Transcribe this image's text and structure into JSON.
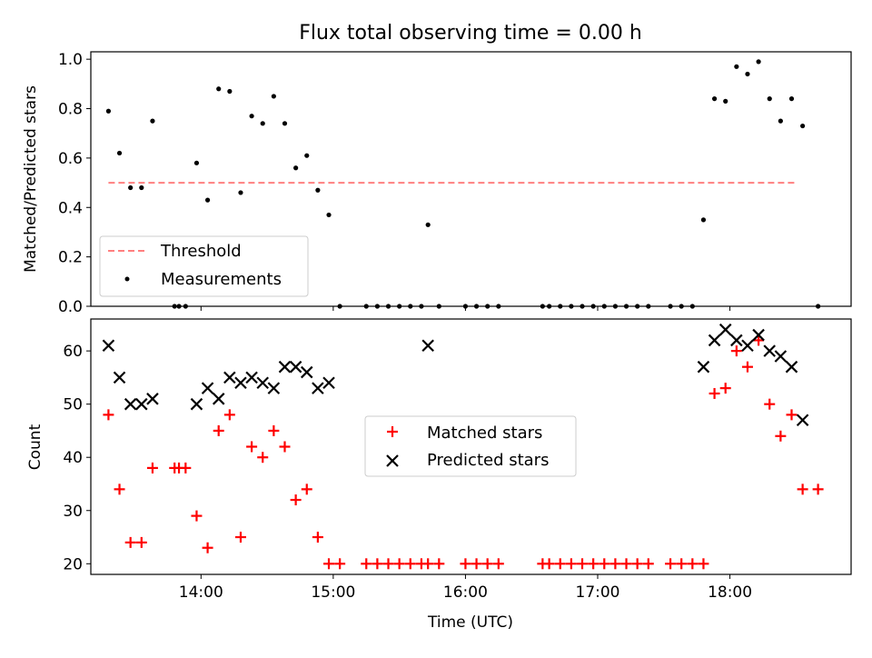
{
  "chart_data": [
    {
      "type": "scatter",
      "title": "Flux total observing time = 0.00 h",
      "ylabel": "Matched/Predicted stars",
      "xlabel": "",
      "xlim": [
        "13:10",
        "18:55"
      ],
      "ylim": [
        0,
        1.03
      ],
      "yticks": [
        "0.0",
        "0.2",
        "0.4",
        "0.6",
        "0.8",
        "1.0"
      ],
      "xtick_labels_shown": false,
      "legend": {
        "placement": "lower-left",
        "entries": [
          "Threshold",
          "Measurements"
        ]
      },
      "series": [
        {
          "name": "Threshold",
          "style": "dashed-line",
          "color": "#ff7f7f",
          "points": [
            [
              "13:18",
              0.5
            ],
            [
              "18:30",
              0.5
            ]
          ]
        },
        {
          "name": "Measurements",
          "style": "dot",
          "color": "#000000",
          "points": [
            [
              "13:18",
              0.79
            ],
            [
              "13:23",
              0.62
            ],
            [
              "13:28",
              0.48
            ],
            [
              "13:33",
              0.48
            ],
            [
              "13:38",
              0.75
            ],
            [
              "13:48",
              0.0
            ],
            [
              "13:50",
              0.0
            ],
            [
              "13:53",
              0.0
            ],
            [
              "13:58",
              0.58
            ],
            [
              "14:03",
              0.43
            ],
            [
              "14:08",
              0.88
            ],
            [
              "14:13",
              0.87
            ],
            [
              "14:18",
              0.46
            ],
            [
              "14:23",
              0.77
            ],
            [
              "14:28",
              0.74
            ],
            [
              "14:33",
              0.85
            ],
            [
              "14:38",
              0.74
            ],
            [
              "14:43",
              0.56
            ],
            [
              "14:48",
              0.61
            ],
            [
              "14:53",
              0.47
            ],
            [
              "14:58",
              0.37
            ],
            [
              "15:03",
              0.0
            ],
            [
              "15:15",
              0.0
            ],
            [
              "15:20",
              0.0
            ],
            [
              "15:25",
              0.0
            ],
            [
              "15:30",
              0.0
            ],
            [
              "15:35",
              0.0
            ],
            [
              "15:40",
              0.0
            ],
            [
              "15:43",
              0.33
            ],
            [
              "15:48",
              0.0
            ],
            [
              "16:00",
              0.0
            ],
            [
              "16:05",
              0.0
            ],
            [
              "16:10",
              0.0
            ],
            [
              "16:15",
              0.0
            ],
            [
              "16:35",
              0.0
            ],
            [
              "16:38",
              0.0
            ],
            [
              "16:43",
              0.0
            ],
            [
              "16:48",
              0.0
            ],
            [
              "16:53",
              0.0
            ],
            [
              "16:58",
              0.0
            ],
            [
              "17:03",
              0.0
            ],
            [
              "17:08",
              0.0
            ],
            [
              "17:13",
              0.0
            ],
            [
              "17:18",
              0.0
            ],
            [
              "17:23",
              0.0
            ],
            [
              "17:33",
              0.0
            ],
            [
              "17:38",
              0.0
            ],
            [
              "17:43",
              0.0
            ],
            [
              "17:48",
              0.35
            ],
            [
              "17:53",
              0.84
            ],
            [
              "17:58",
              0.83
            ],
            [
              "18:03",
              0.97
            ],
            [
              "18:08",
              0.94
            ],
            [
              "18:13",
              0.99
            ],
            [
              "18:18",
              0.84
            ],
            [
              "18:23",
              0.75
            ],
            [
              "18:28",
              0.84
            ],
            [
              "18:33",
              0.73
            ],
            [
              "18:40",
              0.0
            ]
          ]
        }
      ]
    },
    {
      "type": "scatter",
      "title": "",
      "ylabel": "Count",
      "xlabel": "Time (UTC)",
      "xlim": [
        "13:10",
        "18:55"
      ],
      "ylim": [
        18,
        66
      ],
      "yticks": [
        "20",
        "30",
        "40",
        "50",
        "60"
      ],
      "xticks": [
        "14:00",
        "15:00",
        "16:00",
        "17:00",
        "18:00"
      ],
      "legend": {
        "placement": "center",
        "entries": [
          "Matched stars",
          "Predicted stars"
        ]
      },
      "series": [
        {
          "name": "Matched stars",
          "marker": "plus",
          "color": "#ff0000",
          "points": [
            [
              "13:18",
              48
            ],
            [
              "13:23",
              34
            ],
            [
              "13:28",
              24
            ],
            [
              "13:33",
              24
            ],
            [
              "13:38",
              38
            ],
            [
              "13:48",
              38
            ],
            [
              "13:50",
              38
            ],
            [
              "13:53",
              38
            ],
            [
              "13:58",
              29
            ],
            [
              "14:03",
              23
            ],
            [
              "14:08",
              45
            ],
            [
              "14:13",
              48
            ],
            [
              "14:18",
              25
            ],
            [
              "14:23",
              42
            ],
            [
              "14:28",
              40
            ],
            [
              "14:33",
              45
            ],
            [
              "14:38",
              42
            ],
            [
              "14:43",
              32
            ],
            [
              "14:48",
              34
            ],
            [
              "14:53",
              25
            ],
            [
              "14:58",
              20
            ],
            [
              "15:03",
              20
            ],
            [
              "15:15",
              20
            ],
            [
              "15:20",
              20
            ],
            [
              "15:25",
              20
            ],
            [
              "15:30",
              20
            ],
            [
              "15:35",
              20
            ],
            [
              "15:40",
              20
            ],
            [
              "15:43",
              20
            ],
            [
              "15:48",
              20
            ],
            [
              "16:00",
              20
            ],
            [
              "16:05",
              20
            ],
            [
              "16:10",
              20
            ],
            [
              "16:15",
              20
            ],
            [
              "16:35",
              20
            ],
            [
              "16:38",
              20
            ],
            [
              "16:43",
              20
            ],
            [
              "16:48",
              20
            ],
            [
              "16:53",
              20
            ],
            [
              "16:58",
              20
            ],
            [
              "17:03",
              20
            ],
            [
              "17:08",
              20
            ],
            [
              "17:13",
              20
            ],
            [
              "17:18",
              20
            ],
            [
              "17:23",
              20
            ],
            [
              "17:33",
              20
            ],
            [
              "17:38",
              20
            ],
            [
              "17:43",
              20
            ],
            [
              "17:48",
              20
            ],
            [
              "17:53",
              52
            ],
            [
              "17:58",
              53
            ],
            [
              "18:03",
              60
            ],
            [
              "18:08",
              57
            ],
            [
              "18:13",
              62
            ],
            [
              "18:18",
              50
            ],
            [
              "18:23",
              44
            ],
            [
              "18:28",
              48
            ],
            [
              "18:33",
              34
            ],
            [
              "18:40",
              34
            ]
          ]
        },
        {
          "name": "Predicted stars",
          "marker": "x",
          "color": "#000000",
          "points": [
            [
              "13:18",
              61
            ],
            [
              "13:23",
              55
            ],
            [
              "13:28",
              50
            ],
            [
              "13:33",
              50
            ],
            [
              "13:38",
              51
            ],
            [
              "13:58",
              50
            ],
            [
              "14:03",
              53
            ],
            [
              "14:08",
              51
            ],
            [
              "14:13",
              55
            ],
            [
              "14:18",
              54
            ],
            [
              "14:23",
              55
            ],
            [
              "14:28",
              54
            ],
            [
              "14:33",
              53
            ],
            [
              "14:38",
              57
            ],
            [
              "14:43",
              57
            ],
            [
              "14:48",
              56
            ],
            [
              "14:53",
              53
            ],
            [
              "14:58",
              54
            ],
            [
              "15:43",
              61
            ],
            [
              "17:48",
              57
            ],
            [
              "17:53",
              62
            ],
            [
              "17:58",
              64
            ],
            [
              "18:03",
              62
            ],
            [
              "18:08",
              61
            ],
            [
              "18:13",
              63
            ],
            [
              "18:18",
              60
            ],
            [
              "18:23",
              59
            ],
            [
              "18:28",
              57
            ],
            [
              "18:33",
              47
            ]
          ]
        }
      ]
    }
  ]
}
